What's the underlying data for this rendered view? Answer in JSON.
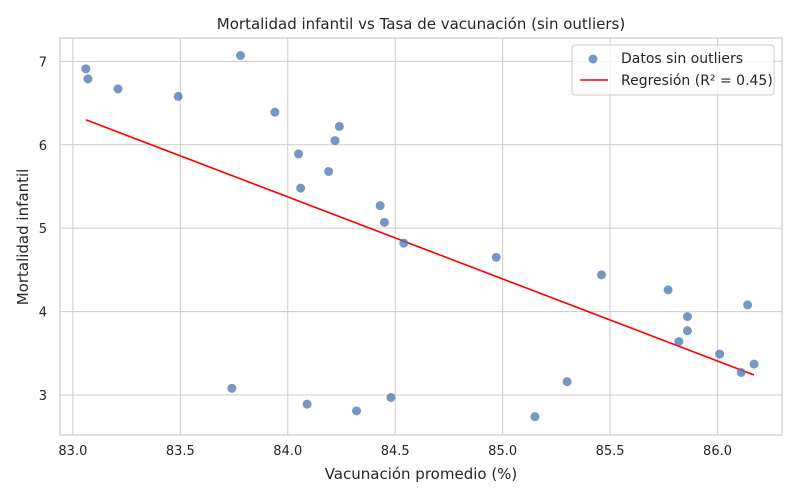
{
  "chart_data": {
    "type": "scatter",
    "title": "Mortalidad infantil vs Tasa de vacunación (sin outliers)",
    "xlabel": "Vacunación promedio (%)",
    "ylabel": "Mortalidad infantil",
    "xlim": [
      82.94,
      86.3
    ],
    "ylim": [
      2.52,
      7.28
    ],
    "xticks": [
      83.0,
      83.5,
      84.0,
      84.5,
      85.0,
      85.5,
      86.0
    ],
    "xtick_labels": [
      "83.0",
      "83.5",
      "84.0",
      "84.5",
      "85.0",
      "85.5",
      "86.0"
    ],
    "yticks": [
      3,
      4,
      5,
      6,
      7
    ],
    "ytick_labels": [
      "3",
      "4",
      "5",
      "6",
      "7"
    ],
    "grid": true,
    "legend_position": "top-right",
    "colors": {
      "points": "#4c72b0",
      "regression": "#ff0000",
      "grid": "#cccccc",
      "axes_edge": "#cccccc"
    },
    "series": [
      {
        "name": "Datos sin outliers",
        "kind": "scatter",
        "points": [
          [
            83.06,
            6.91
          ],
          [
            83.07,
            6.79
          ],
          [
            83.21,
            6.67
          ],
          [
            83.49,
            6.58
          ],
          [
            83.78,
            7.07
          ],
          [
            83.94,
            6.39
          ],
          [
            84.24,
            6.22
          ],
          [
            84.22,
            6.05
          ],
          [
            84.05,
            5.89
          ],
          [
            84.19,
            5.68
          ],
          [
            84.06,
            5.48
          ],
          [
            84.43,
            5.27
          ],
          [
            84.45,
            5.07
          ],
          [
            84.54,
            4.82
          ],
          [
            84.97,
            4.65
          ],
          [
            85.46,
            4.44
          ],
          [
            85.77,
            4.26
          ],
          [
            86.14,
            4.08
          ],
          [
            85.86,
            3.94
          ],
          [
            85.86,
            3.77
          ],
          [
            85.82,
            3.64
          ],
          [
            86.01,
            3.49
          ],
          [
            86.17,
            3.37
          ],
          [
            86.11,
            3.27
          ],
          [
            85.3,
            3.16
          ],
          [
            83.74,
            3.08
          ],
          [
            84.48,
            2.97
          ],
          [
            84.09,
            2.89
          ],
          [
            84.32,
            2.81
          ],
          [
            85.15,
            2.74
          ]
        ]
      },
      {
        "name": "Regresión (R² = 0.45)",
        "kind": "line",
        "points": [
          [
            83.06,
            6.3
          ],
          [
            86.17,
            3.24
          ]
        ]
      }
    ]
  }
}
